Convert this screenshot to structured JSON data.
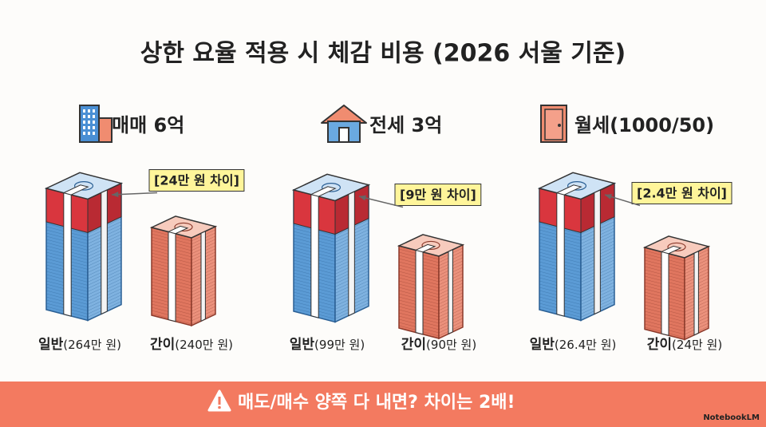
{
  "title": "상한 요율 적용 시 체감 비용 (2026 서울 기준)",
  "panels": [
    {
      "heading": "매매 6억",
      "difference": "[24만 원 차이]",
      "general_label": "일반",
      "general_amount": "(264만 원)",
      "simple_label": "간이",
      "simple_amount": "(240만 원)"
    },
    {
      "heading": "전세 3억",
      "difference": "[9만 원 차이]",
      "general_label": "일반",
      "general_amount": "(99만 원)",
      "simple_label": "간이",
      "simple_amount": "(90만 원)"
    },
    {
      "heading": "월세(1000/50)",
      "difference": "[2.4만 원 차이]",
      "general_label": "일반",
      "general_amount": "(26.4만 원)",
      "simple_label": "간이",
      "simple_amount": "(24만 원)"
    }
  ],
  "banner": "매도/매수 양쪽 다 내면? 차이는 2배!",
  "brand": "NotebookLM"
}
